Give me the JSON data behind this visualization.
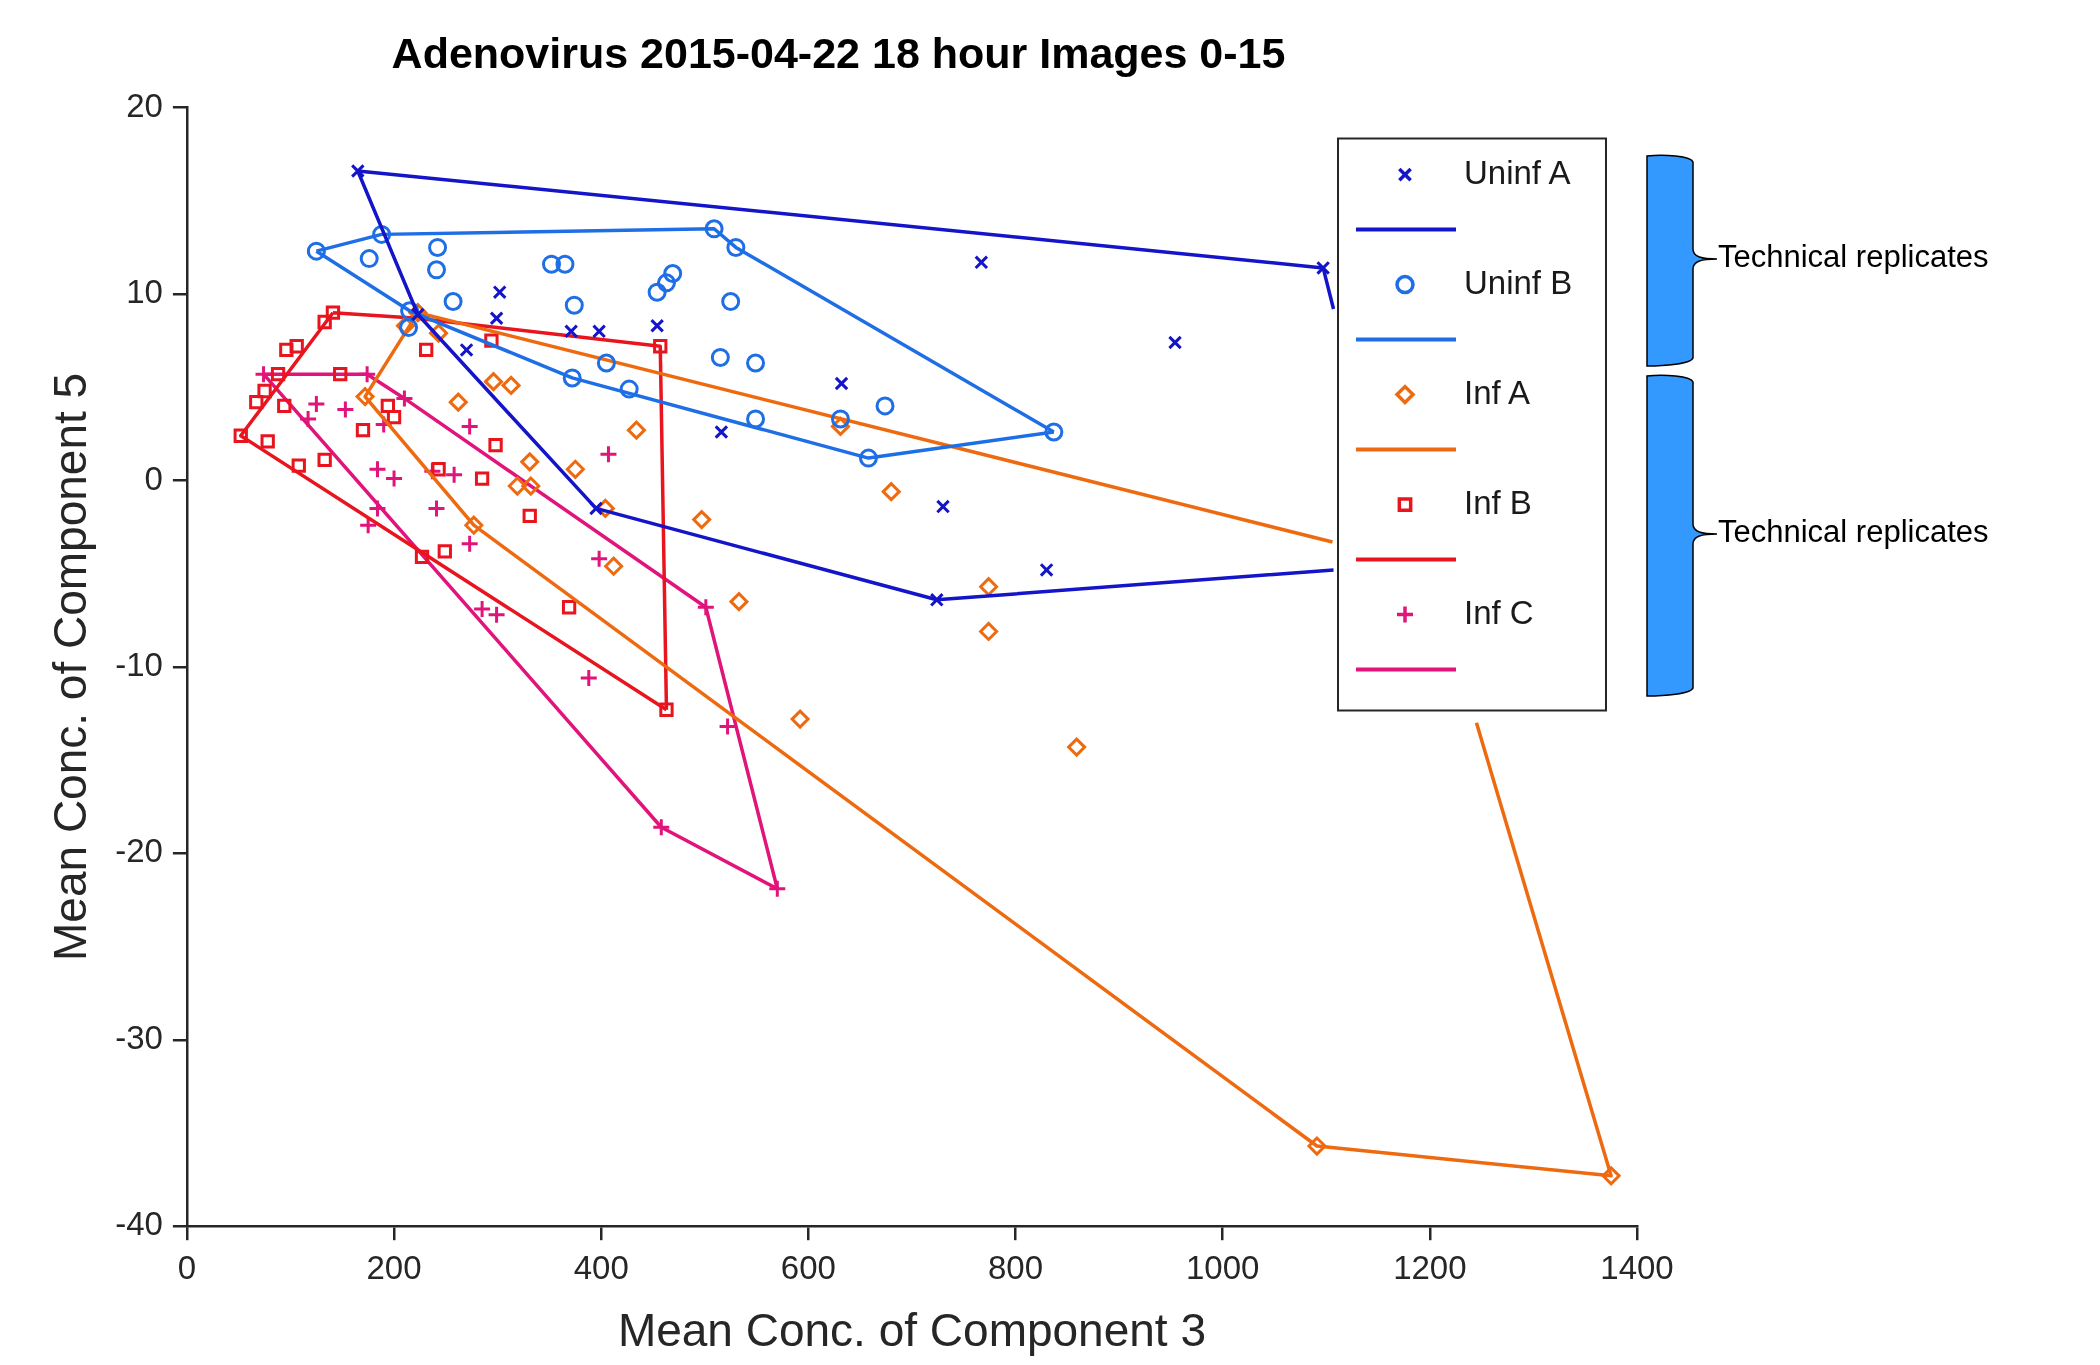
{
  "chart_data": {
    "type": "scatter",
    "title": "Adenovirus 2015-04-22 18 hour Images 0-15",
    "xlabel": "Mean Conc. of Component 3",
    "ylabel": "Mean Conc. of Component 5",
    "xlim": [
      0,
      1400
    ],
    "xticks": [
      0,
      200,
      400,
      600,
      800,
      1000,
      1200,
      1400
    ],
    "ylim": [
      -40,
      20
    ],
    "yticks": [
      -40,
      -30,
      -20,
      -10,
      0,
      10,
      20
    ],
    "grid": false,
    "legend": "top right",
    "annotations": [
      "Technical replicates",
      "Technical replicates"
    ],
    "series": [
      {
        "name": "Uninf A",
        "type": "scatter",
        "marker": "x",
        "color": "#1414c8",
        "x": [
          165,
          302,
          299,
          270,
          371,
          398,
          454,
          516,
          632,
          767,
          730,
          724,
          830,
          954,
          1097,
          223,
          395
        ],
        "values": [
          16.6,
          10.1,
          8.7,
          7.0,
          8.0,
          8.0,
          8.3,
          2.6,
          5.2,
          11.7,
          -1.4,
          -6.4,
          -4.8,
          7.4,
          11.4,
          8.9,
          -1.5
        ]
      },
      {
        "type": "line",
        "marker": "none",
        "color": "#1414c8",
        "x": [
          165,
          1097,
          1107,
          null,
          1107,
          724,
          395,
          223,
          165
        ],
        "values": [
          16.6,
          11.4,
          9.2,
          null,
          -4.8,
          -6.4,
          -1.5,
          8.9,
          16.6
        ]
      },
      {
        "name": "Uninf B",
        "type": "scatter",
        "marker": "circle",
        "color": "#1e6ee6",
        "x": [
          125,
          176,
          188,
          242,
          241,
          257,
          352,
          365,
          374,
          405,
          427,
          454,
          463,
          469,
          509,
          530,
          525,
          515,
          549,
          549,
          631,
          658,
          674,
          837,
          372,
          214,
          215
        ],
        "values": [
          12.3,
          11.9,
          13.2,
          12.5,
          11.3,
          9.6,
          11.6,
          11.6,
          9.4,
          6.3,
          4.9,
          10.1,
          10.6,
          11.1,
          13.5,
          12.5,
          9.6,
          6.6,
          6.3,
          3.3,
          3.3,
          1.2,
          4.0,
          2.6,
          5.5,
          8.2,
          9.1
        ]
      },
      {
        "type": "line",
        "marker": "none",
        "color": "#1e6ee6",
        "x": [
          125,
          188,
          509,
          530,
          837,
          null,
          837,
          658,
          372,
          215,
          125
        ],
        "values": [
          12.3,
          13.2,
          13.5,
          12.5,
          2.6,
          null,
          2.6,
          1.2,
          5.5,
          9.1,
          12.3
        ]
      },
      {
        "name": "Inf A",
        "type": "scatter",
        "marker": "diamond",
        "color": "#ee6a10",
        "x": [
          223,
          211,
          243,
          262,
          296,
          313,
          172,
          331,
          332,
          319,
          375,
          404,
          412,
          434,
          497,
          533,
          631,
          680,
          774,
          774,
          592,
          859,
          1091,
          1375,
          277
        ],
        "values": [
          9.0,
          8.3,
          7.9,
          4.2,
          5.3,
          5.1,
          4.5,
          1.0,
          -0.3,
          -0.3,
          0.6,
          -1.5,
          -4.6,
          2.7,
          -2.1,
          -6.5,
          2.9,
          -0.6,
          -5.7,
          -8.1,
          -12.8,
          -14.3,
          -35.7,
          -37.3,
          -2.4
        ]
      },
      {
        "type": "line",
        "marker": "none",
        "color": "#ee6a10",
        "x": [
          223,
          1106,
          null,
          1245,
          1375,
          1091,
          277,
          172,
          223
        ],
        "values": [
          9.0,
          -3.3,
          null,
          -13.0,
          -37.3,
          -35.7,
          -2.4,
          4.5,
          9.0
        ]
      },
      {
        "name": "Inf B",
        "type": "scatter",
        "marker": "square",
        "color": "#e8141e",
        "x": [
          52,
          67,
          75,
          88,
          96,
          106,
          133,
          141,
          108,
          94,
          78,
          133,
          148,
          170,
          194,
          200,
          231,
          243,
          249,
          227,
          285,
          298,
          294,
          331,
          369,
          457,
          463
        ],
        "values": [
          2.4,
          4.2,
          4.8,
          5.7,
          7.0,
          7.2,
          8.5,
          9.0,
          0.8,
          4.0,
          2.1,
          1.1,
          5.7,
          2.7,
          4.0,
          3.4,
          7.0,
          0.6,
          -3.8,
          -4.1,
          0.1,
          1.9,
          7.5,
          -1.9,
          -6.8,
          7.2,
          -12.3
        ]
      },
      {
        "type": "line",
        "marker": "none",
        "color": "#e8141e",
        "x": [
          141,
          222,
          457,
          463,
          null,
          463,
          52,
          141
        ],
        "values": [
          9.0,
          8.7,
          7.2,
          -12.3,
          null,
          -12.3,
          2.4,
          9.0
        ]
      },
      {
        "name": "Inf C",
        "type": "scatter",
        "marker": "cross",
        "color": "#e0147a",
        "x": [
          74,
          174,
          175,
          388,
          458,
          570,
          522,
          501,
          299,
          285,
          273,
          241,
          258,
          210,
          190,
          184,
          200,
          184,
          273,
          153,
          125,
          117,
          237,
          407,
          398
        ],
        "values": [
          5.7,
          5.7,
          -2.4,
          -10.6,
          -18.6,
          -21.9,
          -13.2,
          -6.8,
          -7.2,
          -6.9,
          -3.4,
          -1.5,
          0.3,
          4.4,
          3.0,
          0.6,
          0.1,
          -1.5,
          2.9,
          3.8,
          4.1,
          3.3,
          0.5,
          1.4,
          -4.2
        ]
      },
      {
        "type": "line",
        "marker": "none",
        "color": "#e0147a",
        "x": [
          74,
          174,
          210,
          501,
          570,
          null,
          570,
          458,
          74
        ],
        "values": [
          5.7,
          5.7,
          4.4,
          -6.8,
          -21.9,
          null,
          -21.9,
          -18.6,
          5.7
        ]
      }
    ]
  }
}
